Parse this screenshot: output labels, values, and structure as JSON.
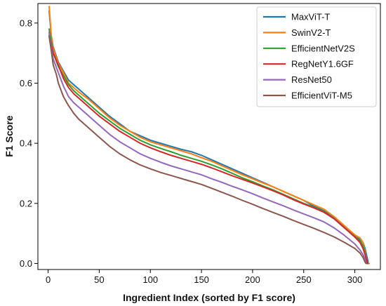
{
  "chart_data": {
    "type": "line",
    "title": "",
    "xlabel": "Ingredient Index (sorted by F1 score)",
    "ylabel": "F1 Score",
    "xlim": [
      -10,
      325
    ],
    "ylim": [
      -0.02,
      0.865
    ],
    "xticks": [
      0,
      50,
      100,
      150,
      200,
      250,
      300
    ],
    "yticks": [
      0.0,
      0.2,
      0.4,
      0.6,
      0.8
    ],
    "ytick_labels": [
      "0.0",
      "0.2",
      "0.4",
      "0.6",
      "0.8"
    ],
    "grid": false,
    "legend_position": "top-right",
    "series": [
      {
        "name": "MaxViT-T",
        "color": "#1f77b4",
        "points": [
          [
            1,
            0.84
          ],
          [
            3,
            0.76
          ],
          [
            5,
            0.72
          ],
          [
            10,
            0.67
          ],
          [
            15,
            0.64
          ],
          [
            20,
            0.61
          ],
          [
            25,
            0.595
          ],
          [
            30,
            0.58
          ],
          [
            40,
            0.55
          ],
          [
            50,
            0.52
          ],
          [
            60,
            0.49
          ],
          [
            70,
            0.465
          ],
          [
            80,
            0.44
          ],
          [
            90,
            0.425
          ],
          [
            100,
            0.41
          ],
          [
            110,
            0.4
          ],
          [
            120,
            0.39
          ],
          [
            130,
            0.38
          ],
          [
            140,
            0.372
          ],
          [
            150,
            0.36
          ],
          [
            160,
            0.345
          ],
          [
            170,
            0.33
          ],
          [
            180,
            0.315
          ],
          [
            190,
            0.3
          ],
          [
            200,
            0.285
          ],
          [
            210,
            0.27
          ],
          [
            220,
            0.255
          ],
          [
            230,
            0.24
          ],
          [
            240,
            0.225
          ],
          [
            250,
            0.21
          ],
          [
            260,
            0.19
          ],
          [
            270,
            0.175
          ],
          [
            280,
            0.15
          ],
          [
            290,
            0.12
          ],
          [
            300,
            0.09
          ],
          [
            305,
            0.08
          ],
          [
            308,
            0.07
          ],
          [
            310,
            0.05
          ],
          [
            312,
            0.02
          ],
          [
            313,
            0.005
          ]
        ]
      },
      {
        "name": "SwinV2-T",
        "color": "#ff7f0e",
        "points": [
          [
            1,
            0.855
          ],
          [
            3,
            0.76
          ],
          [
            5,
            0.715
          ],
          [
            10,
            0.665
          ],
          [
            15,
            0.635
          ],
          [
            20,
            0.6
          ],
          [
            25,
            0.585
          ],
          [
            30,
            0.57
          ],
          [
            40,
            0.545
          ],
          [
            50,
            0.515
          ],
          [
            60,
            0.485
          ],
          [
            70,
            0.46
          ],
          [
            80,
            0.44
          ],
          [
            90,
            0.42
          ],
          [
            100,
            0.405
          ],
          [
            110,
            0.395
          ],
          [
            120,
            0.385
          ],
          [
            130,
            0.375
          ],
          [
            140,
            0.365
          ],
          [
            150,
            0.352
          ],
          [
            160,
            0.34
          ],
          [
            170,
            0.325
          ],
          [
            180,
            0.31
          ],
          [
            190,
            0.295
          ],
          [
            200,
            0.282
          ],
          [
            210,
            0.268
          ],
          [
            220,
            0.255
          ],
          [
            230,
            0.24
          ],
          [
            240,
            0.225
          ],
          [
            250,
            0.21
          ],
          [
            260,
            0.195
          ],
          [
            270,
            0.18
          ],
          [
            280,
            0.155
          ],
          [
            290,
            0.125
          ],
          [
            300,
            0.095
          ],
          [
            305,
            0.085
          ],
          [
            308,
            0.07
          ],
          [
            310,
            0.04
          ],
          [
            312,
            0.0
          ],
          [
            314,
            0.0
          ]
        ]
      },
      {
        "name": "EfficientNetV2S",
        "color": "#2ca02c",
        "points": [
          [
            1,
            0.78
          ],
          [
            3,
            0.74
          ],
          [
            5,
            0.7
          ],
          [
            10,
            0.655
          ],
          [
            15,
            0.625
          ],
          [
            20,
            0.595
          ],
          [
            25,
            0.575
          ],
          [
            30,
            0.56
          ],
          [
            40,
            0.53
          ],
          [
            50,
            0.5
          ],
          [
            60,
            0.475
          ],
          [
            70,
            0.45
          ],
          [
            80,
            0.43
          ],
          [
            90,
            0.41
          ],
          [
            100,
            0.395
          ],
          [
            110,
            0.383
          ],
          [
            120,
            0.372
          ],
          [
            130,
            0.36
          ],
          [
            140,
            0.35
          ],
          [
            150,
            0.34
          ],
          [
            160,
            0.328
          ],
          [
            170,
            0.315
          ],
          [
            180,
            0.3
          ],
          [
            190,
            0.285
          ],
          [
            200,
            0.272
          ],
          [
            210,
            0.258
          ],
          [
            220,
            0.245
          ],
          [
            230,
            0.23
          ],
          [
            240,
            0.215
          ],
          [
            250,
            0.2
          ],
          [
            260,
            0.187
          ],
          [
            270,
            0.172
          ],
          [
            280,
            0.148
          ],
          [
            290,
            0.118
          ],
          [
            300,
            0.09
          ],
          [
            305,
            0.075
          ],
          [
            308,
            0.06
          ],
          [
            310,
            0.035
          ],
          [
            312,
            0.0
          ],
          [
            313,
            0.0
          ]
        ]
      },
      {
        "name": "RegNetY1.6GF",
        "color": "#d62728",
        "points": [
          [
            1,
            0.76
          ],
          [
            3,
            0.73
          ],
          [
            5,
            0.7
          ],
          [
            10,
            0.66
          ],
          [
            15,
            0.615
          ],
          [
            20,
            0.585
          ],
          [
            25,
            0.565
          ],
          [
            30,
            0.55
          ],
          [
            40,
            0.52
          ],
          [
            50,
            0.49
          ],
          [
            60,
            0.465
          ],
          [
            70,
            0.44
          ],
          [
            80,
            0.42
          ],
          [
            90,
            0.4
          ],
          [
            100,
            0.385
          ],
          [
            110,
            0.372
          ],
          [
            120,
            0.36
          ],
          [
            130,
            0.35
          ],
          [
            140,
            0.34
          ],
          [
            150,
            0.33
          ],
          [
            160,
            0.318
          ],
          [
            170,
            0.305
          ],
          [
            180,
            0.292
          ],
          [
            190,
            0.28
          ],
          [
            200,
            0.268
          ],
          [
            210,
            0.255
          ],
          [
            220,
            0.242
          ],
          [
            230,
            0.228
          ],
          [
            240,
            0.212
          ],
          [
            250,
            0.198
          ],
          [
            260,
            0.185
          ],
          [
            270,
            0.17
          ],
          [
            280,
            0.148
          ],
          [
            290,
            0.118
          ],
          [
            300,
            0.088
          ],
          [
            305,
            0.07
          ],
          [
            308,
            0.05
          ],
          [
            310,
            0.03
          ],
          [
            312,
            0.005
          ],
          [
            313,
            0.0
          ]
        ]
      },
      {
        "name": "ResNet50",
        "color": "#9467bd",
        "points": [
          [
            1,
            0.77
          ],
          [
            3,
            0.72
          ],
          [
            5,
            0.68
          ],
          [
            10,
            0.635
          ],
          [
            15,
            0.59
          ],
          [
            20,
            0.555
          ],
          [
            25,
            0.535
          ],
          [
            30,
            0.52
          ],
          [
            40,
            0.49
          ],
          [
            50,
            0.46
          ],
          [
            60,
            0.43
          ],
          [
            70,
            0.405
          ],
          [
            80,
            0.385
          ],
          [
            90,
            0.365
          ],
          [
            100,
            0.35
          ],
          [
            110,
            0.337
          ],
          [
            120,
            0.325
          ],
          [
            130,
            0.315
          ],
          [
            140,
            0.305
          ],
          [
            150,
            0.295
          ],
          [
            160,
            0.282
          ],
          [
            170,
            0.27
          ],
          [
            180,
            0.257
          ],
          [
            190,
            0.245
          ],
          [
            200,
            0.232
          ],
          [
            210,
            0.218
          ],
          [
            220,
            0.205
          ],
          [
            230,
            0.192
          ],
          [
            240,
            0.178
          ],
          [
            250,
            0.165
          ],
          [
            260,
            0.152
          ],
          [
            270,
            0.138
          ],
          [
            280,
            0.118
          ],
          [
            290,
            0.093
          ],
          [
            300,
            0.065
          ],
          [
            305,
            0.045
          ],
          [
            308,
            0.03
          ],
          [
            310,
            0.015
          ],
          [
            311,
            0.0
          ]
        ]
      },
      {
        "name": "EfficientViT-M5",
        "color": "#8c564b",
        "points": [
          [
            1,
            0.755
          ],
          [
            3,
            0.71
          ],
          [
            5,
            0.66
          ],
          [
            8,
            0.63
          ],
          [
            10,
            0.6
          ],
          [
            15,
            0.555
          ],
          [
            20,
            0.525
          ],
          [
            25,
            0.5
          ],
          [
            30,
            0.48
          ],
          [
            40,
            0.45
          ],
          [
            50,
            0.42
          ],
          [
            60,
            0.39
          ],
          [
            70,
            0.365
          ],
          [
            80,
            0.345
          ],
          [
            90,
            0.328
          ],
          [
            100,
            0.315
          ],
          [
            110,
            0.303
          ],
          [
            120,
            0.293
          ],
          [
            130,
            0.283
          ],
          [
            140,
            0.273
          ],
          [
            150,
            0.263
          ],
          [
            160,
            0.25
          ],
          [
            170,
            0.237
          ],
          [
            180,
            0.224
          ],
          [
            190,
            0.21
          ],
          [
            200,
            0.197
          ],
          [
            210,
            0.183
          ],
          [
            220,
            0.17
          ],
          [
            230,
            0.157
          ],
          [
            240,
            0.143
          ],
          [
            250,
            0.13
          ],
          [
            260,
            0.117
          ],
          [
            270,
            0.103
          ],
          [
            280,
            0.088
          ],
          [
            290,
            0.07
          ],
          [
            300,
            0.05
          ],
          [
            305,
            0.035
          ],
          [
            308,
            0.02
          ],
          [
            310,
            0.005
          ],
          [
            311,
            0.0
          ]
        ]
      }
    ]
  }
}
